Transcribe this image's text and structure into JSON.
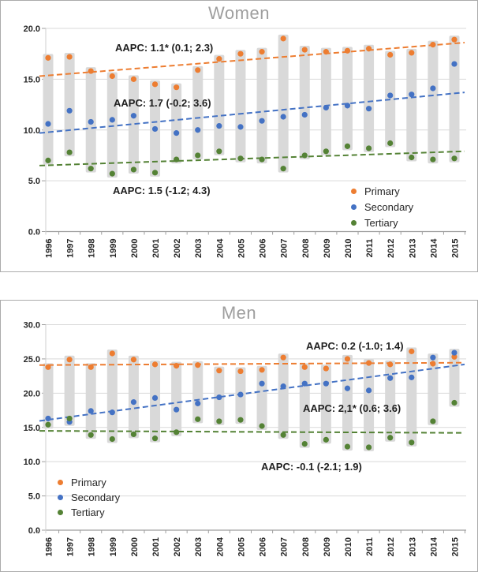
{
  "colors": {
    "primary": "#ED7D31",
    "secondary": "#4472C4",
    "tertiary": "#548235",
    "range_bar": "#D9D9D9",
    "gridline": "#D9D9D9",
    "axis": "#9E9E9E",
    "tick_text": "#262626",
    "title_text": "#9E9E9E",
    "annotation_text": "#1F1F1F"
  },
  "chart_data": [
    {
      "type": "scatter",
      "title": "Women",
      "grid": true,
      "range_bars": true,
      "ylim": [
        0,
        20
      ],
      "yticks": [
        "0.0",
        "5.0",
        "10.0",
        "15.0",
        "20.0"
      ],
      "categories": [
        "1996",
        "1997",
        "1998",
        "1999",
        "2000",
        "2001",
        "2002",
        "2003",
        "2004",
        "2005",
        "2006",
        "2007",
        "2008",
        "2009",
        "2010",
        "2011",
        "2012",
        "2013",
        "2014",
        "2015"
      ],
      "series": [
        {
          "name": "Primary",
          "color": "#ED7D31",
          "values": [
            17.1,
            17.2,
            15.8,
            15.3,
            15.0,
            14.5,
            14.2,
            15.9,
            17.0,
            17.5,
            17.7,
            19.0,
            17.9,
            17.7,
            17.8,
            18.0,
            17.4,
            17.6,
            18.4,
            18.9
          ]
        },
        {
          "name": "Secondary",
          "color": "#4472C4",
          "values": [
            10.6,
            11.9,
            10.8,
            11.0,
            11.4,
            10.1,
            9.7,
            10.0,
            10.4,
            10.3,
            10.9,
            11.3,
            11.5,
            12.2,
            12.4,
            12.1,
            13.4,
            13.5,
            14.1,
            16.5
          ]
        },
        {
          "name": "Tertiary",
          "color": "#548235",
          "values": [
            7.0,
            7.8,
            6.2,
            5.7,
            6.1,
            5.8,
            7.1,
            7.5,
            7.9,
            7.2,
            7.1,
            6.2,
            7.5,
            7.9,
            8.4,
            8.2,
            8.7,
            7.3,
            7.1,
            7.2
          ]
        }
      ],
      "trendlines": [
        {
          "series": "Primary",
          "start": 15.3,
          "end": 18.6
        },
        {
          "series": "Secondary",
          "start": 9.7,
          "end": 13.7
        },
        {
          "series": "Tertiary",
          "start": 6.5,
          "end": 7.9
        }
      ],
      "annotations": [
        {
          "text": "AAPC: 1.1* (0.1; 2.3)",
          "series": "Primary"
        },
        {
          "text": "AAPC: 1.7 (-0.2; 3.6)",
          "series": "Secondary"
        },
        {
          "text": "AAPC: 1.5 (-1.2; 4.3)",
          "series": "Tertiary"
        }
      ],
      "legend": {
        "position": "middle-right",
        "items": [
          "Primary",
          "Secondary",
          "Tertiary"
        ]
      }
    },
    {
      "type": "scatter",
      "title": "Men",
      "grid": true,
      "range_bars": true,
      "ylim": [
        0,
        30
      ],
      "yticks": [
        "0.0",
        "5.0",
        "10.0",
        "15.0",
        "20.0",
        "25.0",
        "30.0"
      ],
      "categories": [
        "1996",
        "1997",
        "1998",
        "1999",
        "2000",
        "2001",
        "2002",
        "2003",
        "2004",
        "2005",
        "2006",
        "2007",
        "2008",
        "2009",
        "2010",
        "2011",
        "2012",
        "2013",
        "2014",
        "2015"
      ],
      "series": [
        {
          "name": "Primary",
          "color": "#ED7D31",
          "values": [
            23.8,
            24.9,
            23.8,
            25.8,
            24.9,
            24.2,
            24.0,
            24.1,
            23.3,
            23.2,
            23.4,
            25.2,
            23.8,
            23.6,
            25.0,
            24.4,
            24.2,
            26.1,
            24.3,
            25.3
          ]
        },
        {
          "name": "Secondary",
          "color": "#4472C4",
          "values": [
            16.3,
            15.8,
            17.4,
            17.2,
            18.7,
            19.3,
            17.6,
            18.5,
            19.4,
            19.8,
            21.4,
            21.0,
            21.4,
            21.4,
            20.7,
            20.4,
            22.2,
            22.3,
            25.2,
            25.9
          ]
        },
        {
          "name": "Tertiary",
          "color": "#548235",
          "values": [
            15.4,
            16.3,
            13.9,
            13.3,
            14.0,
            13.4,
            14.3,
            16.2,
            15.9,
            16.1,
            15.2,
            13.9,
            12.6,
            13.2,
            12.2,
            12.1,
            13.5,
            12.8,
            15.9,
            18.6
          ]
        }
      ],
      "trendlines": [
        {
          "series": "Primary",
          "start": 24.1,
          "end": 24.45
        },
        {
          "series": "Secondary",
          "start": 15.95,
          "end": 24.2
        },
        {
          "series": "Tertiary",
          "start": 14.5,
          "end": 14.2
        }
      ],
      "annotations": [
        {
          "text": "AAPC: 0.2 (-1.0; 1.4)",
          "series": "Primary"
        },
        {
          "text": "AAPC: 2,1* (0.6; 3.6)",
          "series": "Secondary"
        },
        {
          "text": "AAPC: -0.1 (-2.1; 1.9)",
          "series": "Tertiary"
        }
      ],
      "legend": {
        "position": "bottom-left",
        "items": [
          "Primary",
          "Secondary",
          "Tertiary"
        ]
      }
    }
  ]
}
